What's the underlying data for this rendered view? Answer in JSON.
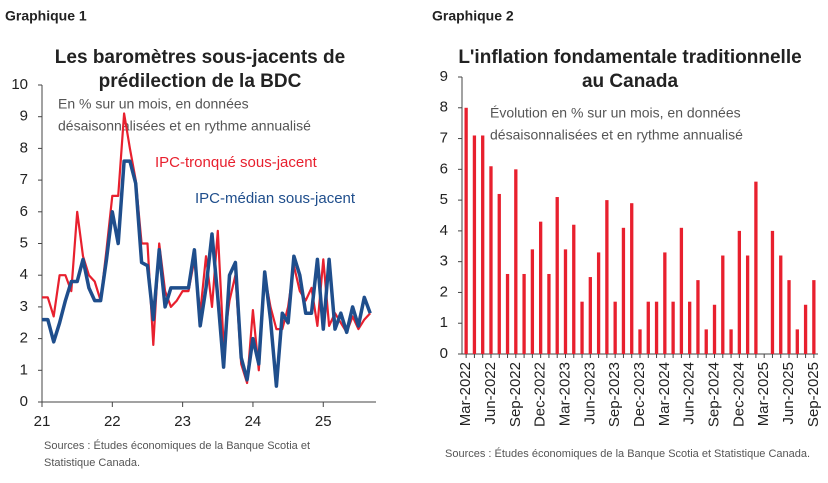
{
  "chart_data": [
    {
      "type": "line",
      "figure_label": "Graphique 1",
      "title": [
        "Les baromètres sous-jacents de",
        "prédilection de la BDC"
      ],
      "subtitle": [
        "En % sur un mois, en données",
        "désaisonnalisées et en rythme annualisé"
      ],
      "source": [
        "Sources : Études économiques de la Banque Scotia et",
        "Statistique Canada."
      ],
      "x": [
        21,
        21.083,
        21.167,
        21.25,
        21.333,
        21.417,
        21.5,
        21.583,
        21.667,
        21.75,
        21.833,
        21.917,
        22,
        22.083,
        22.167,
        22.25,
        22.333,
        22.417,
        22.5,
        22.583,
        22.667,
        22.75,
        22.833,
        22.917,
        23,
        23.083,
        23.167,
        23.25,
        23.333,
        23.417,
        23.5,
        23.583,
        23.667,
        23.75,
        23.833,
        23.917,
        24,
        24.083,
        24.167,
        24.25,
        24.333,
        24.417,
        24.5,
        24.583,
        24.667,
        24.75,
        24.833,
        24.917,
        25,
        25.083,
        25.167,
        25.25,
        25.333,
        25.417,
        25.5,
        25.583,
        25.667
      ],
      "series": [
        {
          "name": "IPC-tronqué sous-jacent",
          "color": "#e8202e",
          "values": [
            3.3,
            3.3,
            2.7,
            4.0,
            4.0,
            3.5,
            6.0,
            4.6,
            4.0,
            3.8,
            3.2,
            4.8,
            6.5,
            6.5,
            9.1,
            8.0,
            7.0,
            5.0,
            5.0,
            1.8,
            5.0,
            3.5,
            3.0,
            3.2,
            3.5,
            3.5,
            4.5,
            2.8,
            4.6,
            3.0,
            5.4,
            1.8,
            3.2,
            4.0,
            1.2,
            0.6,
            2.9,
            1.0,
            4.0,
            3.0,
            2.3,
            2.3,
            3.0,
            4.3,
            3.5,
            3.2,
            3.6,
            2.4,
            4.5,
            2.4,
            2.8,
            2.5,
            2.2,
            2.7,
            2.3,
            2.6,
            2.8
          ]
        },
        {
          "name": "IPC-médian sous-jacent",
          "color": "#1f4e8c",
          "values": [
            2.6,
            2.6,
            1.9,
            2.5,
            3.2,
            3.8,
            3.8,
            4.5,
            3.6,
            3.2,
            3.2,
            4.5,
            6.0,
            5.0,
            7.6,
            7.6,
            6.9,
            4.4,
            4.3,
            2.6,
            4.8,
            3.0,
            3.6,
            3.6,
            3.6,
            3.6,
            4.8,
            2.4,
            3.6,
            5.3,
            3.3,
            1.1,
            4.0,
            4.4,
            1.4,
            0.7,
            2.0,
            1.2,
            4.1,
            2.6,
            0.5,
            2.8,
            2.5,
            4.6,
            4.0,
            2.8,
            2.8,
            4.5,
            2.3,
            4.5,
            2.3,
            2.8,
            2.2,
            3.0,
            2.4,
            3.3,
            2.8
          ]
        }
      ],
      "xlim": [
        21,
        25.75
      ],
      "xticks": [
        21,
        22,
        23,
        24,
        25
      ],
      "ylim": [
        0,
        10
      ],
      "yticks": [
        0,
        1,
        2,
        3,
        4,
        5,
        6,
        7,
        8,
        9,
        10
      ]
    },
    {
      "type": "bar",
      "figure_label": "Graphique 2",
      "title": [
        "L'inflation fondamentale traditionnelle",
        "au Canada"
      ],
      "subtitle": [
        "Évolution en % sur un mois, en données",
        "désaisonnalisées et en rythme annualisé"
      ],
      "source": [
        "Sources : Études économiques de la Banque Scotia et Statistique Canada."
      ],
      "color": "#e8202e",
      "categories": [
        "Mar-2022",
        null,
        null,
        "Jun-2022",
        null,
        null,
        "Sep-2022",
        null,
        null,
        "Dec-2022",
        null,
        null,
        "Mar-2023",
        null,
        null,
        "Jun-2023",
        null,
        null,
        "Sep-2023",
        null,
        null,
        "Dec-2023",
        null,
        null,
        "Mar-2024",
        null,
        null,
        "Jun-2024",
        null,
        null,
        "Sep-2024",
        null,
        null,
        "Dec-2024",
        null,
        null,
        "Mar-2025",
        null,
        null,
        "Jun-2025",
        null,
        null,
        "Sep-2025"
      ],
      "values": [
        8.0,
        7.1,
        7.1,
        6.1,
        5.2,
        2.6,
        6.0,
        2.6,
        3.4,
        4.3,
        2.6,
        5.1,
        3.4,
        4.2,
        1.7,
        2.5,
        3.3,
        5.0,
        1.7,
        4.1,
        4.9,
        0.8,
        1.7,
        1.7,
        3.3,
        1.7,
        4.1,
        1.7,
        2.4,
        0.8,
        1.6,
        3.2,
        0.8,
        4.0,
        3.2,
        5.6,
        0,
        4.0,
        3.2,
        2.4,
        0.8,
        1.6,
        2.4
      ],
      "ylim": [
        0,
        9
      ],
      "yticks": [
        0,
        1,
        2,
        3,
        4,
        5,
        6,
        7,
        8,
        9
      ]
    }
  ]
}
